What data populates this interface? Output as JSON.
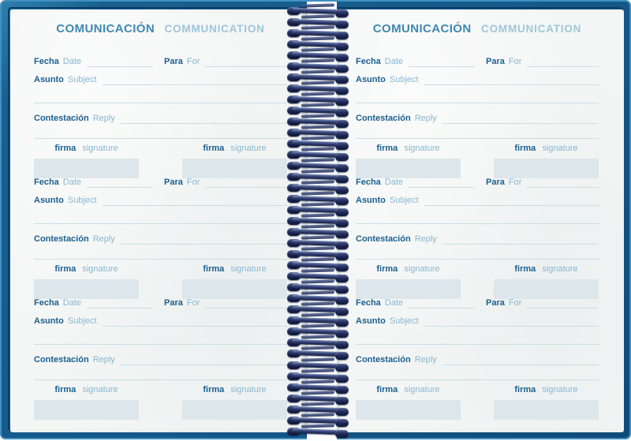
{
  "notebook": {
    "cover_color": "#14588a",
    "cover_edge_light": "#4190c0",
    "cover_edge_dark": "#0b3c64",
    "page_background": "#f4f6f5",
    "spiral_color": "#1c2652",
    "sections_per_page": 3
  },
  "spiral": {
    "loops": 39
  },
  "header": {
    "title_es": "COMUNICACIÓN",
    "title_en": "COMMUNICATION",
    "title_es_color": "#3f88b1",
    "title_en_color": "#9dc6da"
  },
  "form_labels": {
    "fecha": "Fecha",
    "date": "Date",
    "para": "Para",
    "for": "For",
    "asunto": "Asunto",
    "subject": "Subject",
    "contestacion": "Contestación",
    "reply": "Reply",
    "firma": "firma",
    "signature": "signature"
  },
  "colors": {
    "label_bold": "#1c6090",
    "label_light": "#88b7d1",
    "rule_line": "#c9dee9",
    "signature_box": "#dce6eb"
  }
}
